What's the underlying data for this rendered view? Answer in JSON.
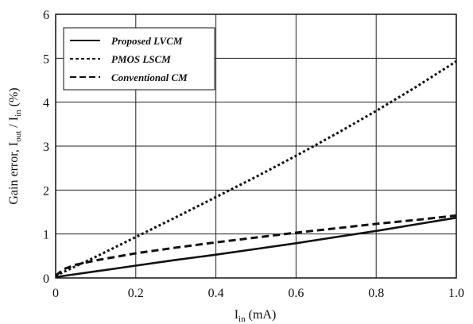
{
  "chart_data": {
    "type": "line",
    "xlabel": "I_in (mA)",
    "ylabel": "Gain error, I_out / I_in (%)",
    "xlim": [
      0,
      1.0
    ],
    "ylim": [
      0,
      6
    ],
    "x_ticks": [
      "0",
      "0.2",
      "0.4",
      "0.6",
      "0.8",
      "1.0"
    ],
    "y_ticks": [
      "0",
      "1",
      "2",
      "3",
      "4",
      "5",
      "6"
    ],
    "grid": true,
    "legend_position": "top-left",
    "series": [
      {
        "name": "Proposed LVCM",
        "style": "solid",
        "x": [
          0,
          0.1,
          0.2,
          0.3,
          0.4,
          0.5,
          0.6,
          0.7,
          0.8,
          0.9,
          1.0
        ],
        "y": [
          0.02,
          0.15,
          0.28,
          0.41,
          0.53,
          0.66,
          0.79,
          0.93,
          1.07,
          1.22,
          1.37
        ]
      },
      {
        "name": "PMOS LSCM",
        "style": "dotted",
        "x": [
          0,
          0.1,
          0.2,
          0.3,
          0.4,
          0.5,
          0.6,
          0.7,
          0.8,
          0.9,
          1.0
        ],
        "y": [
          0.05,
          0.48,
          0.93,
          1.38,
          1.84,
          2.3,
          2.78,
          3.28,
          3.8,
          4.35,
          4.93
        ]
      },
      {
        "name": "Conventional CM",
        "style": "dashed",
        "x": [
          0,
          0.02,
          0.05,
          0.1,
          0.2,
          0.3,
          0.4,
          0.5,
          0.6,
          0.7,
          0.8,
          0.9,
          1.0
        ],
        "y": [
          0.05,
          0.2,
          0.3,
          0.4,
          0.56,
          0.69,
          0.81,
          0.92,
          1.03,
          1.13,
          1.23,
          1.32,
          1.42
        ]
      }
    ]
  }
}
